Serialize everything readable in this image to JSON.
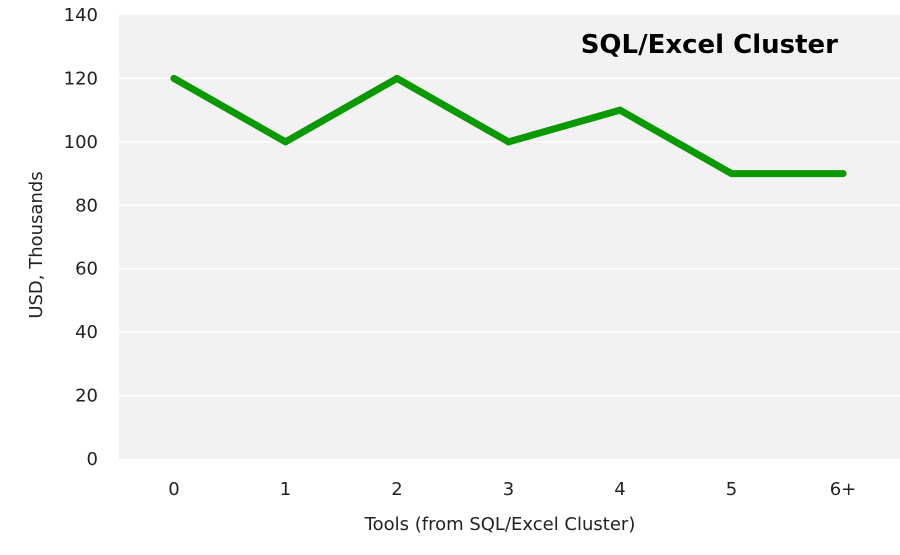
{
  "chart_data": {
    "type": "line",
    "title": "SQL/Excel Cluster",
    "xlabel": "Tools (from SQL/Excel Cluster)",
    "ylabel": "USD, Thousands",
    "categories": [
      "0",
      "1",
      "2",
      "3",
      "4",
      "5",
      "6+"
    ],
    "series": [
      {
        "name": "SQL/Excel Cluster",
        "values": [
          120,
          100,
          120,
          100,
          110,
          90,
          90
        ]
      }
    ],
    "ylim": [
      0,
      140
    ],
    "yticks": [
      0,
      20,
      40,
      60,
      80,
      100,
      120,
      140
    ],
    "ytick_labels": [
      "0",
      "20",
      "40",
      "60",
      "80",
      "100",
      "120",
      "140"
    ],
    "grid": true,
    "legend": "none"
  },
  "colors": {
    "plot_background": "#f2f2f2",
    "gridline": "#ffffff",
    "line": "#0a9900"
  }
}
